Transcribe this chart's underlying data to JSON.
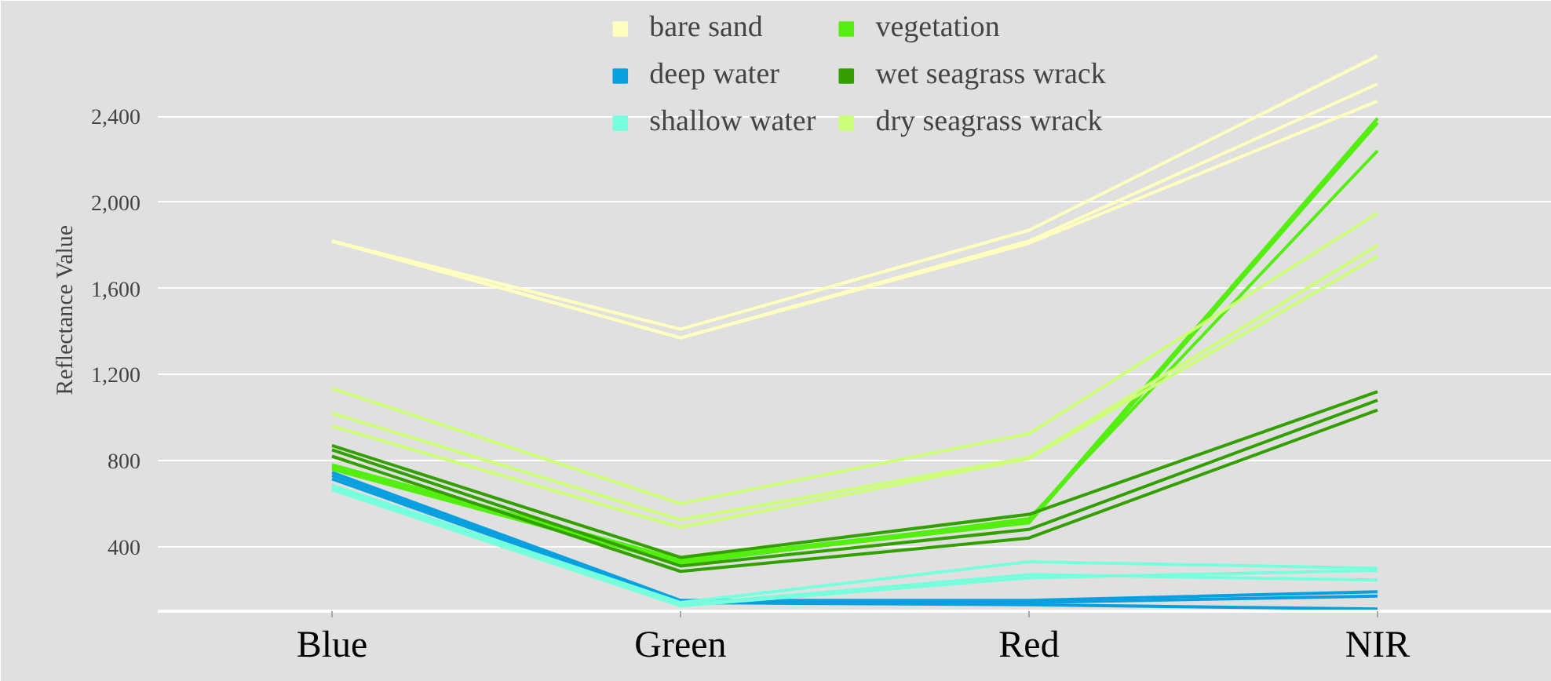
{
  "chart_data": {
    "type": "line",
    "ylabel": "Reflectance Value",
    "categories": [
      "Blue",
      "Green",
      "Red",
      "NIR"
    ],
    "ylim": [
      100,
      2900
    ],
    "yticks": [
      {
        "value": 400,
        "label": "400"
      },
      {
        "value": 800,
        "label": "800"
      },
      {
        "value": 1200,
        "label": "1,200"
      },
      {
        "value": 1600,
        "label": "1,600"
      },
      {
        "value": 2000,
        "label": "2,000"
      },
      {
        "value": 2400,
        "label": "2,400"
      }
    ],
    "grid": "y",
    "legend": "top",
    "line_style": "solid",
    "marker": "none",
    "series": [
      {
        "name": "bare sand",
        "color": "#ffffc0",
        "values": [
          1820,
          1410,
          1870,
          2680
        ]
      },
      {
        "color": "#ffffc0",
        "values": [
          1820,
          1370,
          1820,
          2550
        ]
      },
      {
        "color": "#ffffc0",
        "values": [
          1820,
          1370,
          1810,
          2470
        ]
      },
      {
        "name": "deep water",
        "color": "#0aa0e0",
        "values": [
          745,
          150,
          150,
          190
        ]
      },
      {
        "color": "#0aa0e0",
        "values": [
          730,
          145,
          140,
          170
        ]
      },
      {
        "color": "#0aa0e0",
        "values": [
          715,
          140,
          130,
          110
        ]
      },
      {
        "name": "shallow water",
        "color": "#77ffdd",
        "values": [
          685,
          140,
          330,
          300
        ]
      },
      {
        "color": "#77ffdd",
        "values": [
          670,
          130,
          270,
          245
        ]
      },
      {
        "color": "#77ffdd",
        "values": [
          665,
          125,
          255,
          290
        ]
      },
      {
        "name": "vegetation",
        "color": "#55ee11",
        "values": [
          780,
          340,
          520,
          2390
        ]
      },
      {
        "color": "#55ee11",
        "values": [
          770,
          330,
          510,
          2370
        ]
      },
      {
        "color": "#55ee11",
        "values": [
          760,
          320,
          530,
          2240
        ]
      },
      {
        "name": "wet seagrass wrack",
        "color": "#33a000",
        "values": [
          870,
          350,
          550,
          1120
        ]
      },
      {
        "color": "#33a000",
        "values": [
          850,
          310,
          480,
          1080
        ]
      },
      {
        "color": "#33a000",
        "values": [
          820,
          285,
          440,
          1035
        ]
      },
      {
        "name": "dry seagrass wrack",
        "color": "#ccff77",
        "values": [
          1135,
          600,
          925,
          1950
        ]
      },
      {
        "color": "#ccff77",
        "values": [
          1020,
          525,
          815,
          1800
        ]
      },
      {
        "color": "#ccff77",
        "values": [
          960,
          490,
          810,
          1750
        ]
      }
    ]
  }
}
